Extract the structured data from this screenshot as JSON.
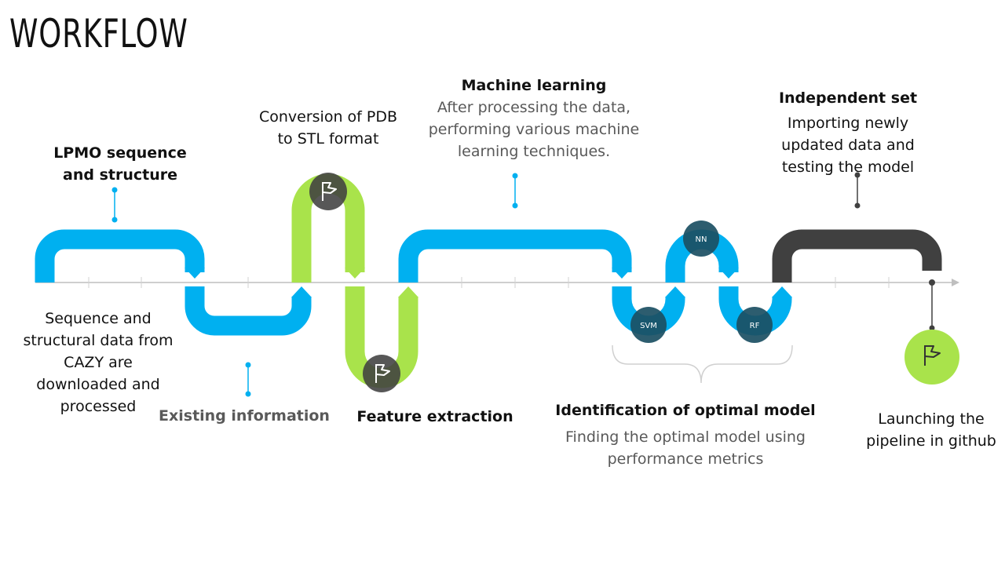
{
  "title": "WORKFLOW",
  "colors": {
    "blue": "#00b0f0",
    "green": "#a9e34b",
    "dark": "#404040",
    "axis": "#bfbfbf",
    "marker_dark": "#1b4f63"
  },
  "stages": {
    "lpmo": {
      "title": "LPMO sequence",
      "title2": "and structure"
    },
    "sequence_data": {
      "lines": [
        "Sequence and",
        "structural data from",
        "CAZY are",
        "downloaded and",
        "processed"
      ]
    },
    "existing": {
      "title": "Existing information"
    },
    "conversion": {
      "lines": [
        "Conversion of PDB",
        "to STL format"
      ]
    },
    "feature": {
      "title": "Feature extraction"
    },
    "ml": {
      "title": "Machine learning",
      "lines": [
        "After processing the data,",
        "performing various machine",
        "learning techniques."
      ]
    },
    "optimal": {
      "title": "Identification of optimal model",
      "lines": [
        "Finding the optimal model using",
        "performance metrics"
      ]
    },
    "independent": {
      "title": "Independent set",
      "lines": [
        "Importing newly",
        "updated data and",
        "testing the model"
      ]
    },
    "launch": {
      "lines": [
        "Launching the",
        "pipeline in github"
      ]
    }
  },
  "markers": {
    "nn": "NN",
    "svm": "SVM",
    "rf": "RF"
  },
  "icons": {
    "flag": "flag-icon"
  }
}
